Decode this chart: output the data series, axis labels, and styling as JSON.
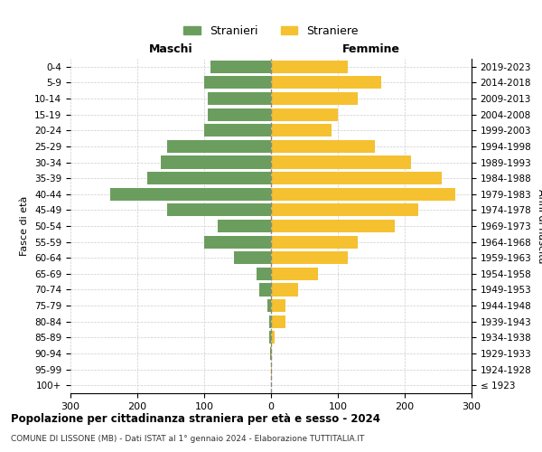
{
  "age_groups": [
    "100+",
    "95-99",
    "90-94",
    "85-89",
    "80-84",
    "75-79",
    "70-74",
    "65-69",
    "60-64",
    "55-59",
    "50-54",
    "45-49",
    "40-44",
    "35-39",
    "30-34",
    "25-29",
    "20-24",
    "15-19",
    "10-14",
    "5-9",
    "0-4"
  ],
  "birth_years": [
    "≤ 1923",
    "1924-1928",
    "1929-1933",
    "1934-1938",
    "1939-1943",
    "1944-1948",
    "1949-1953",
    "1954-1958",
    "1959-1963",
    "1964-1968",
    "1969-1973",
    "1974-1978",
    "1979-1983",
    "1984-1988",
    "1989-1993",
    "1994-1998",
    "1999-2003",
    "2004-2008",
    "2009-2013",
    "2014-2018",
    "2019-2023"
  ],
  "males": [
    0,
    0,
    2,
    3,
    3,
    5,
    18,
    22,
    55,
    100,
    80,
    155,
    240,
    185,
    165,
    155,
    100,
    95,
    95,
    100,
    90
  ],
  "females": [
    0,
    1,
    2,
    5,
    22,
    22,
    40,
    70,
    115,
    130,
    185,
    220,
    275,
    255,
    210,
    155,
    90,
    100,
    130,
    165,
    115
  ],
  "male_color": "#6b9e5e",
  "female_color": "#f5c131",
  "background_color": "#ffffff",
  "grid_color": "#cccccc",
  "title": "Popolazione per cittadinanza straniera per età e sesso - 2024",
  "subtitle": "COMUNE DI LISSONE (MB) - Dati ISTAT al 1° gennaio 2024 - Elaborazione TUTTITALIA.IT",
  "xlabel_left": "Maschi",
  "xlabel_right": "Femmine",
  "ylabel_left": "Fasce di età",
  "ylabel_right": "Anni di nascita",
  "legend_male": "Stranieri",
  "legend_female": "Straniere",
  "xlim": 300,
  "bar_height": 0.8
}
